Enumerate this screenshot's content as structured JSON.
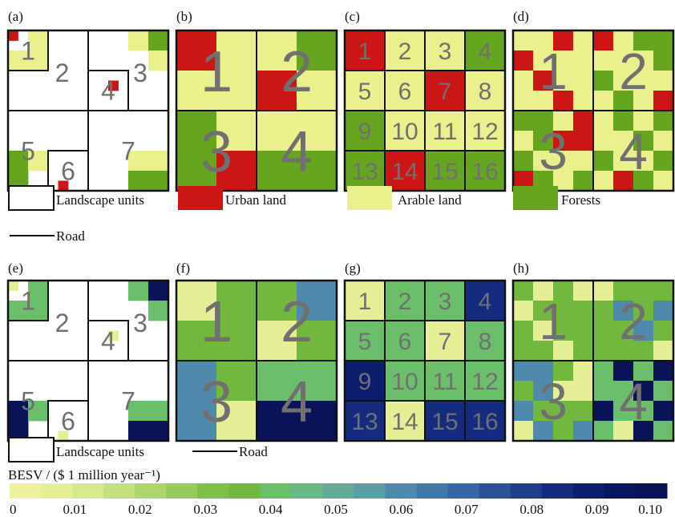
{
  "palette": {
    "urban": "#cc1515",
    "arable": "#eaf08c",
    "forest": "#66a61e",
    "number_gray": "#707070"
  },
  "top_panels": [
    {
      "label": "(a)",
      "units": [
        {
          "id": "1",
          "cells": [
            [
              1,
              0,
              0,
              0
            ],
            [
              0,
              0,
              0,
              0
            ],
            [
              0,
              0,
              0,
              0
            ],
            [
              0,
              0,
              0,
              0
            ]
          ]
        },
        {
          "id": "2",
          "cells": [
            [
              0,
              2,
              0,
              0
            ],
            [
              2,
              2,
              0,
              0
            ],
            [
              0,
              0,
              0,
              0
            ],
            [
              0,
              0,
              0,
              0
            ]
          ]
        },
        {
          "id": "3",
          "cells": [
            [
              0,
              0,
              2,
              3
            ],
            [
              0,
              0,
              0,
              2
            ],
            [
              0,
              0,
              0,
              0
            ],
            [
              0,
              0,
              0,
              0
            ]
          ]
        },
        {
          "id": "4",
          "cells": [
            [
              0,
              0,
              0,
              0
            ],
            [
              0,
              0,
              1,
              0
            ],
            [
              0,
              0,
              0,
              0
            ],
            [
              0,
              0,
              0,
              0
            ]
          ]
        },
        {
          "id": "5",
          "cells": [
            [
              0,
              0,
              0,
              0
            ],
            [
              0,
              0,
              0,
              0
            ],
            [
              3,
              2,
              0,
              0
            ],
            [
              3,
              0,
              0,
              0
            ]
          ]
        },
        {
          "id": "6",
          "cells": [
            [
              0,
              0,
              0,
              0
            ],
            [
              0,
              0,
              0,
              0
            ],
            [
              0,
              0,
              0,
              0
            ],
            [
              0,
              1,
              0,
              0
            ]
          ]
        },
        {
          "id": "7",
          "cells": [
            [
              0,
              0,
              0,
              0
            ],
            [
              0,
              0,
              0,
              0
            ],
            [
              0,
              0,
              2,
              2
            ],
            [
              0,
              0,
              3,
              3
            ]
          ]
        }
      ]
    },
    {
      "label": "(b)",
      "units": [
        {
          "id": "1",
          "cells": [
            [
              1,
              2
            ],
            [
              2,
              2
            ]
          ]
        },
        {
          "id": "2",
          "cells": [
            [
              2,
              3
            ],
            [
              1,
              2
            ]
          ]
        },
        {
          "id": "3",
          "cells": [
            [
              3,
              2
            ],
            [
              3,
              1
            ]
          ]
        },
        {
          "id": "4",
          "cells": [
            [
              2,
              2
            ],
            [
              3,
              3
            ]
          ]
        }
      ]
    },
    {
      "label": "(c)",
      "units": [
        {
          "id": "1",
          "cells": [
            [
              1
            ]
          ]
        },
        {
          "id": "2",
          "cells": [
            [
              2
            ]
          ]
        },
        {
          "id": "3",
          "cells": [
            [
              2
            ]
          ]
        },
        {
          "id": "4",
          "cells": [
            [
              3
            ]
          ]
        },
        {
          "id": "5",
          "cells": [
            [
              2
            ]
          ]
        },
        {
          "id": "6",
          "cells": [
            [
              2
            ]
          ]
        },
        {
          "id": "7",
          "cells": [
            [
              1
            ]
          ]
        },
        {
          "id": "8",
          "cells": [
            [
              2
            ]
          ]
        },
        {
          "id": "9",
          "cells": [
            [
              3
            ]
          ]
        },
        {
          "id": "10",
          "cells": [
            [
              2
            ]
          ]
        },
        {
          "id": "11",
          "cells": [
            [
              2
            ]
          ]
        },
        {
          "id": "12",
          "cells": [
            [
              2
            ]
          ]
        },
        {
          "id": "13",
          "cells": [
            [
              3
            ]
          ]
        },
        {
          "id": "14",
          "cells": [
            [
              1
            ]
          ]
        },
        {
          "id": "15",
          "cells": [
            [
              3
            ]
          ]
        },
        {
          "id": "16",
          "cells": [
            [
              3
            ]
          ]
        }
      ]
    },
    {
      "label": "(d)",
      "units": [
        {
          "id": "1",
          "cells": [
            [
              2,
              2,
              1,
              2
            ],
            [
              1,
              2,
              2,
              2
            ],
            [
              2,
              1,
              2,
              2
            ],
            [
              2,
              2,
              1,
              2
            ]
          ]
        },
        {
          "id": "2",
          "cells": [
            [
              1,
              2,
              3,
              3
            ],
            [
              2,
              2,
              2,
              3
            ],
            [
              3,
              2,
              2,
              2
            ],
            [
              2,
              3,
              2,
              1
            ]
          ]
        },
        {
          "id": "3",
          "cells": [
            [
              3,
              3,
              2,
              1
            ],
            [
              2,
              3,
              1,
              1
            ],
            [
              3,
              2,
              2,
              2
            ],
            [
              1,
              3,
              2,
              3
            ]
          ]
        },
        {
          "id": "4",
          "cells": [
            [
              2,
              3,
              2,
              3
            ],
            [
              2,
              2,
              3,
              2
            ],
            [
              3,
              2,
              2,
              3
            ],
            [
              2,
              1,
              3,
              2
            ]
          ]
        }
      ]
    }
  ],
  "bottom_panels": [
    {
      "label": "(e)",
      "units": [
        {
          "id": "1",
          "cells": [
            [
              1,
              0,
              0,
              0
            ],
            [
              0,
              0,
              0,
              0
            ],
            [
              0,
              0,
              0,
              0
            ],
            [
              0,
              0,
              0,
              0
            ]
          ]
        },
        {
          "id": "2",
          "cells": [
            [
              0,
              8,
              0,
              0
            ],
            [
              8,
              8,
              0,
              0
            ],
            [
              0,
              0,
              0,
              0
            ],
            [
              0,
              0,
              0,
              0
            ]
          ]
        },
        {
          "id": "3",
          "cells": [
            [
              0,
              0,
              8,
              20
            ],
            [
              0,
              0,
              0,
              8
            ],
            [
              0,
              0,
              0,
              0
            ],
            [
              0,
              0,
              0,
              0
            ]
          ]
        },
        {
          "id": "4",
          "cells": [
            [
              0,
              0,
              0,
              0
            ],
            [
              0,
              0,
              1,
              0
            ],
            [
              0,
              0,
              0,
              0
            ],
            [
              0,
              0,
              0,
              0
            ]
          ]
        },
        {
          "id": "5",
          "cells": [
            [
              0,
              0,
              0,
              0
            ],
            [
              0,
              0,
              0,
              0
            ],
            [
              20,
              8,
              0,
              0
            ],
            [
              20,
              0,
              0,
              0
            ]
          ]
        },
        {
          "id": "6",
          "cells": [
            [
              0,
              0,
              0,
              0
            ],
            [
              0,
              0,
              0,
              0
            ],
            [
              0,
              0,
              0,
              0
            ],
            [
              0,
              1,
              0,
              0
            ]
          ]
        },
        {
          "id": "7",
          "cells": [
            [
              0,
              0,
              0,
              0
            ],
            [
              0,
              0,
              0,
              0
            ],
            [
              0,
              0,
              8,
              8
            ],
            [
              0,
              0,
              20,
              20
            ]
          ]
        }
      ]
    },
    {
      "label": "(f)",
      "units": [
        {
          "id": "1",
          "cells": [
            [
              1,
              7
            ],
            [
              7,
              7
            ]
          ]
        },
        {
          "id": "2",
          "cells": [
            [
              7,
              12
            ],
            [
              1,
              7
            ]
          ]
        },
        {
          "id": "3",
          "cells": [
            [
              12,
              7
            ],
            [
              12,
              1
            ]
          ]
        },
        {
          "id": "4",
          "cells": [
            [
              8,
              8
            ],
            [
              20,
              20
            ]
          ]
        }
      ]
    },
    {
      "label": "(g)",
      "units": [
        {
          "id": "1",
          "cells": [
            [
              1
            ]
          ]
        },
        {
          "id": "2",
          "cells": [
            [
              8
            ]
          ]
        },
        {
          "id": "3",
          "cells": [
            [
              8
            ]
          ]
        },
        {
          "id": "4",
          "cells": [
            [
              17
            ]
          ]
        },
        {
          "id": "5",
          "cells": [
            [
              8
            ]
          ]
        },
        {
          "id": "6",
          "cells": [
            [
              8
            ]
          ]
        },
        {
          "id": "7",
          "cells": [
            [
              1
            ]
          ]
        },
        {
          "id": "8",
          "cells": [
            [
              8
            ]
          ]
        },
        {
          "id": "9",
          "cells": [
            [
              18
            ]
          ]
        },
        {
          "id": "10",
          "cells": [
            [
              8
            ]
          ]
        },
        {
          "id": "11",
          "cells": [
            [
              8
            ]
          ]
        },
        {
          "id": "12",
          "cells": [
            [
              8
            ]
          ]
        },
        {
          "id": "13",
          "cells": [
            [
              17
            ]
          ]
        },
        {
          "id": "14",
          "cells": [
            [
              1
            ]
          ]
        },
        {
          "id": "15",
          "cells": [
            [
              17
            ]
          ]
        },
        {
          "id": "16",
          "cells": [
            [
              17
            ]
          ]
        }
      ]
    },
    {
      "label": "(h)",
      "units": [
        {
          "id": "1",
          "cells": [
            [
              7,
              1,
              7,
              1
            ],
            [
              1,
              7,
              7,
              7
            ],
            [
              7,
              1,
              7,
              7
            ],
            [
              7,
              7,
              1,
              7
            ]
          ]
        },
        {
          "id": "2",
          "cells": [
            [
              1,
              7,
              7,
              7
            ],
            [
              7,
              12,
              7,
              12
            ],
            [
              7,
              7,
              12,
              7
            ],
            [
              7,
              7,
              7,
              1
            ]
          ]
        },
        {
          "id": "3",
          "cells": [
            [
              12,
              12,
              7,
              1
            ],
            [
              7,
              12,
              1,
              1
            ],
            [
              12,
              7,
              7,
              7
            ],
            [
              1,
              12,
              7,
              12
            ]
          ]
        },
        {
          "id": "4",
          "cells": [
            [
              8,
              20,
              8,
              20
            ],
            [
              8,
              8,
              20,
              8
            ],
            [
              20,
              8,
              8,
              20
            ],
            [
              8,
              1,
              20,
              8
            ]
          ]
        }
      ]
    }
  ],
  "legend_top": {
    "landscape_units": "Landscape units",
    "urban_land": "Urban land",
    "arable_land": "Arable land",
    "forests": "Forests",
    "road": "Road"
  },
  "legend_bottom": {
    "landscape_units": "Landscape units",
    "road": "Road"
  },
  "colorbar": {
    "title": "BESV / ($ 1 million year⁻¹)",
    "colors": [
      "#eef29c",
      "#e5ef96",
      "#d6e98b",
      "#c4e07c",
      "#aed46a",
      "#96c957",
      "#80bf45",
      "#72b83e",
      "#6bbf6a",
      "#6ab885",
      "#65aa98",
      "#5b9da5",
      "#4f8aad",
      "#4377aa",
      "#3865a3",
      "#2c5199",
      "#1f3d8c",
      "#142b7f",
      "#0d1d6e",
      "#0a1560",
      "#0a1258"
    ],
    "tick_labels": [
      "0",
      "0.01",
      "0.02",
      "0.03",
      "0.04",
      "0.05",
      "0.06",
      "0.07",
      "0.08",
      "0.09",
      "0.10"
    ],
    "range": [
      0,
      0.1
    ]
  }
}
